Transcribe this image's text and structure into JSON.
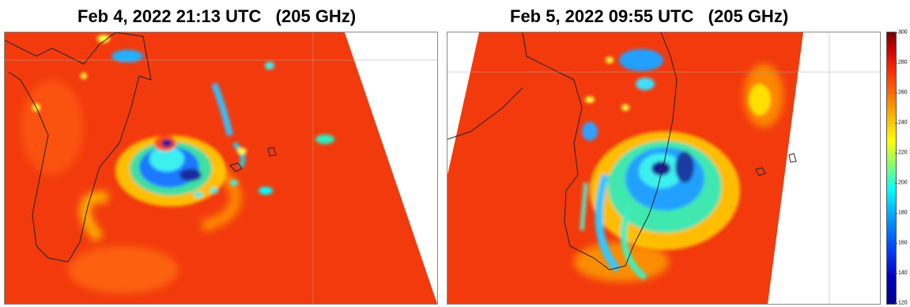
{
  "panels": [
    {
      "title": "Feb 4, 2022 21:13 UTC   (205 GHz)"
    },
    {
      "title": "Feb 5, 2022 09:55 UTC   (205 GHz)"
    }
  ],
  "colorbar": {
    "ticks": [
      "300",
      "280",
      "260",
      "240",
      "220",
      "200",
      "180",
      "160",
      "140",
      "120"
    ],
    "colormap": "jet",
    "colors": {
      "high": "#7a0000",
      "mid_high": "#ff2a00",
      "mid": "#ffff00",
      "mid_low": "#00ffff",
      "low": "#00008f"
    }
  }
}
